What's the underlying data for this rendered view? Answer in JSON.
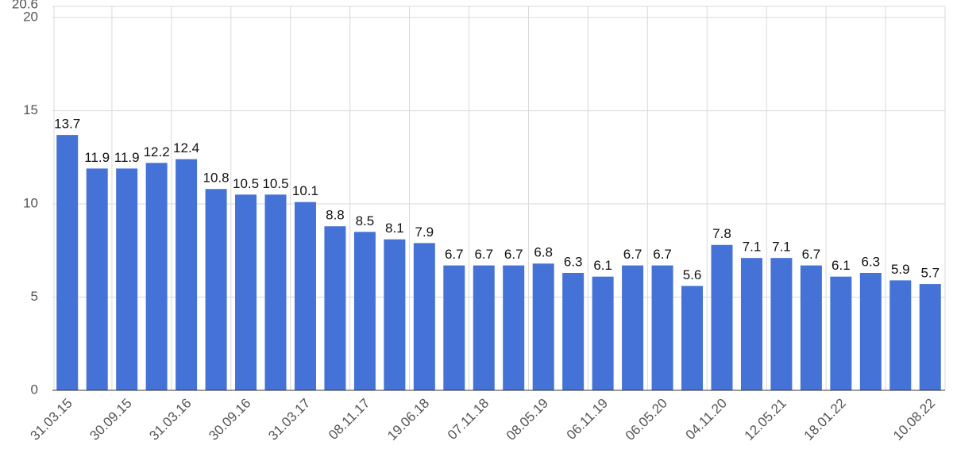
{
  "chart_data": {
    "type": "bar",
    "categories": [
      "31.03.15",
      null,
      "30.09.15",
      null,
      "31.03.16",
      null,
      "30.09.16",
      null,
      "31.03.17",
      null,
      "08.11.17",
      null,
      "19.06.18",
      null,
      "07.11.18",
      null,
      "08.05.19",
      null,
      "06.11.19",
      null,
      "06.05.20",
      null,
      "04.11.20",
      null,
      "12.05.21",
      null,
      "18.01.22",
      null,
      null,
      "10.08.22"
    ],
    "values": [
      13.7,
      11.9,
      11.9,
      12.2,
      12.4,
      10.8,
      10.5,
      10.5,
      10.1,
      8.8,
      8.5,
      8.1,
      7.9,
      6.7,
      6.7,
      6.7,
      6.8,
      6.3,
      6.1,
      6.7,
      6.7,
      5.6,
      7.8,
      7.1,
      7.1,
      6.7,
      6.1,
      6.3,
      5.9,
      5.7
    ],
    "color": "#4472d6",
    "ylim": [
      0,
      20.6
    ],
    "yticks": [
      0,
      5,
      10,
      15,
      20,
      20.6
    ],
    "grid": true
  }
}
